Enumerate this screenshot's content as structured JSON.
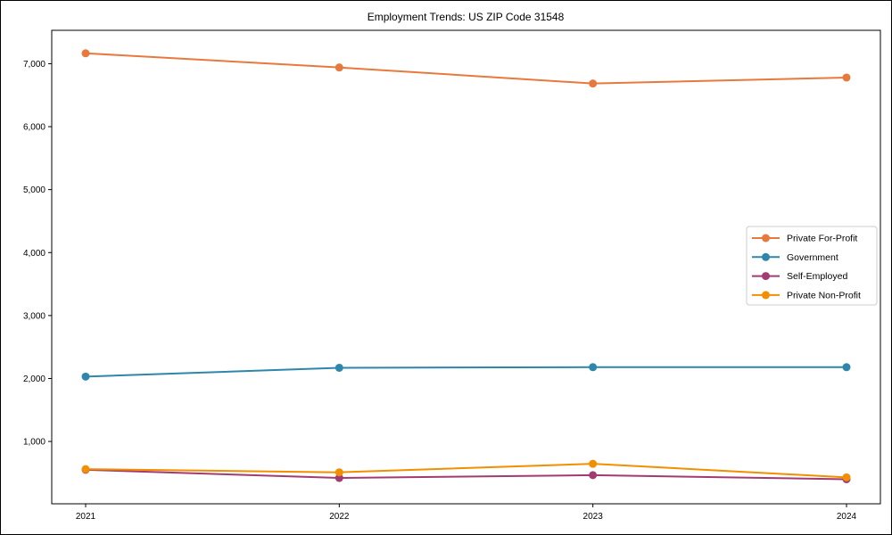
{
  "figure": {
    "background": "#ffffff",
    "border_color": "#000000"
  },
  "chart_data": {
    "type": "line",
    "title": "Employment Trends: US ZIP Code 31548",
    "xlabel": "",
    "ylabel": "",
    "x": [
      "2021",
      "2022",
      "2023",
      "2024"
    ],
    "ylim": [
      10,
      7530
    ],
    "grid": false,
    "legend_position": "center-right",
    "yticks": [
      {
        "value": 1000,
        "label": "1,000"
      },
      {
        "value": 2000,
        "label": "2,000"
      },
      {
        "value": 3000,
        "label": "3,000"
      },
      {
        "value": 4000,
        "label": "4,000"
      },
      {
        "value": 5000,
        "label": "5,000"
      },
      {
        "value": 6000,
        "label": "6,000"
      },
      {
        "value": 7000,
        "label": "7,000"
      }
    ],
    "series": [
      {
        "name": "Private For-Profit",
        "color": "#e8793e",
        "values": [
          7165,
          6940,
          6685,
          6780
        ]
      },
      {
        "name": "Government",
        "color": "#2e86ab",
        "values": [
          2030,
          2170,
          2180,
          2180
        ]
      },
      {
        "name": "Self-Employed",
        "color": "#a23b72",
        "values": [
          550,
          420,
          465,
          400
        ]
      },
      {
        "name": "Private Non-Profit",
        "color": "#f18f01",
        "values": [
          560,
          510,
          645,
          430
        ]
      }
    ]
  }
}
